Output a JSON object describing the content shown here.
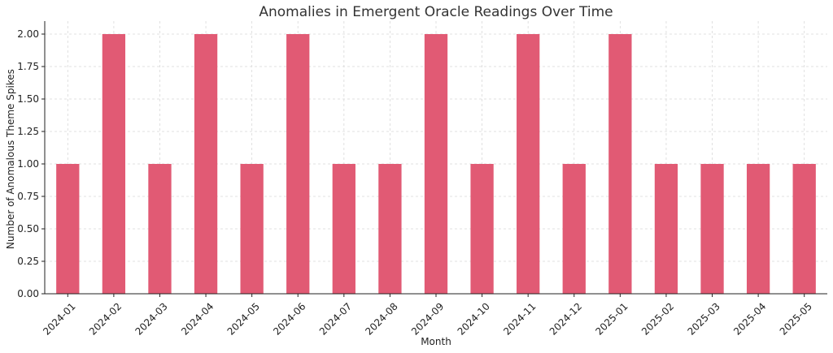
{
  "chart_data": {
    "type": "bar",
    "title": "Anomalies in Emergent Oracle Readings Over Time",
    "xlabel": "Month",
    "ylabel": "Number of Anomalous Theme Spikes",
    "categories": [
      "2024-01",
      "2024-02",
      "2024-03",
      "2024-04",
      "2024-05",
      "2024-06",
      "2024-07",
      "2024-08",
      "2024-09",
      "2024-10",
      "2024-11",
      "2024-12",
      "2025-01",
      "2025-02",
      "2025-03",
      "2025-04",
      "2025-05"
    ],
    "values": [
      1,
      2,
      1,
      2,
      1,
      2,
      1,
      1,
      2,
      1,
      2,
      1,
      2,
      1,
      1,
      1,
      1
    ],
    "ylim": [
      0,
      2.1
    ],
    "yticks": [
      "0.00",
      "0.25",
      "0.50",
      "0.75",
      "1.00",
      "1.25",
      "1.50",
      "1.75",
      "2.00"
    ],
    "grid": true,
    "bar_color": "#e15a74"
  }
}
